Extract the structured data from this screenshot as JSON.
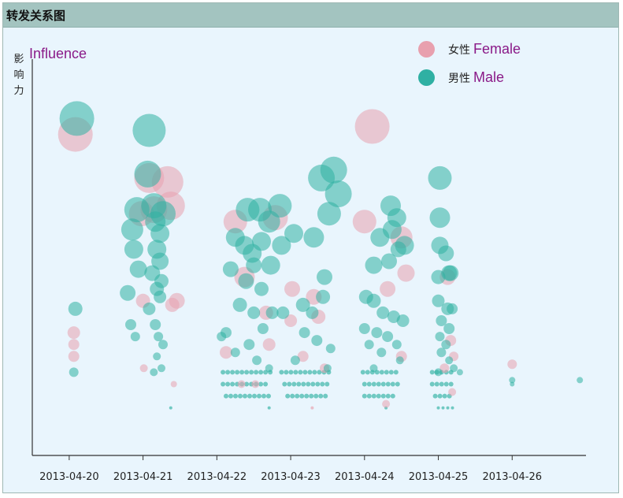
{
  "window": {
    "title": "转发关系图"
  },
  "colors": {
    "female": "#e8a0ae",
    "male": "#2fb0a3",
    "axis": "#333333",
    "background": "#e9f5fd",
    "titlebar": "#a3c4c0",
    "label_accent": "#8a1a88"
  },
  "chart_data": {
    "type": "scatter",
    "title": "转发关系图",
    "ylabel_cn": "影响力",
    "ylabel_en": "Influence",
    "xlabel": "",
    "x_ticks": [
      "2013-04-20",
      "2013-04-21",
      "2013-04-22",
      "2013-04-23",
      "2013-04-24",
      "2013-04-25",
      "2013-04-26"
    ],
    "xlim": [
      "2013-04-19 12:00",
      "2013-04-27 00:00"
    ],
    "ylim": [
      0,
      100
    ],
    "grid": false,
    "legend": {
      "position": "top-right",
      "items": [
        {
          "key": "female",
          "cn": "女性",
          "en": "Female"
        },
        {
          "key": "male",
          "cn": "男性",
          "en": "Male"
        }
      ]
    },
    "series": [
      {
        "name": "Female",
        "points": [
          [
            "2013-04-20 01:30",
            28,
            7
          ],
          [
            "2013-04-20 01:30",
            31,
            8
          ],
          [
            "2013-04-20 01:30",
            25,
            7
          ],
          [
            "2013-04-20 02:00",
            81,
            22
          ],
          [
            "2013-04-21 00:15",
            22,
            5
          ],
          [
            "2013-04-20 23:30",
            61,
            16
          ],
          [
            "2013-04-21 00:00",
            39,
            9
          ],
          [
            "2013-04-21 02:00",
            70,
            19
          ],
          [
            "2013-04-21 03:30",
            62,
            17
          ],
          [
            "2013-04-21 08:00",
            69,
            20
          ],
          [
            "2013-04-21 09:00",
            63,
            18
          ],
          [
            "2013-04-21 09:30",
            38,
            9
          ],
          [
            "2013-04-21 10:00",
            18,
            4
          ],
          [
            "2013-04-21 11:00",
            39,
            10
          ],
          [
            "2013-04-22 06:00",
            59,
            15
          ],
          [
            "2013-04-22 09:00",
            45,
            13
          ],
          [
            "2013-04-22 03:00",
            26,
            8
          ],
          [
            "2013-04-22 19:00",
            60,
            16
          ],
          [
            "2013-04-22 17:00",
            28,
            8
          ],
          [
            "2013-04-22 16:00",
            36,
            9
          ],
          [
            "2013-04-22 12:30",
            18,
            5
          ],
          [
            "2013-04-22 08:00",
            18,
            5
          ],
          [
            "2013-04-23 00:30",
            42,
            10
          ],
          [
            "2013-04-23 00:00",
            34,
            8
          ],
          [
            "2013-04-23 07:30",
            40,
            10
          ],
          [
            "2013-04-23 09:00",
            35,
            9
          ],
          [
            "2013-04-23 04:00",
            25,
            7
          ],
          [
            "2013-04-23 11:00",
            22,
            6
          ],
          [
            "2013-04-24 00:00",
            59,
            15
          ],
          [
            "2013-04-24 02:30",
            83,
            22
          ],
          [
            "2013-04-24 07:30",
            42,
            10
          ],
          [
            "2013-04-24 12:00",
            55,
            14
          ],
          [
            "2013-04-24 13:30",
            46,
            11
          ],
          [
            "2013-04-24 12:00",
            25,
            7
          ],
          [
            "2013-04-24 07:00",
            13,
            5
          ],
          [
            "2013-04-25 03:00",
            45,
            10
          ],
          [
            "2013-04-25 04:00",
            29,
            7
          ],
          [
            "2013-04-25 05:00",
            25,
            6
          ],
          [
            "2013-04-25 02:00",
            22,
            6
          ],
          [
            "2013-04-25 04:30",
            16,
            5
          ],
          [
            "2013-04-26 00:00",
            23,
            6
          ]
        ]
      },
      {
        "name": "Male",
        "points": [
          [
            "2013-04-20 02:30",
            85,
            22
          ],
          [
            "2013-04-20 02:00",
            37,
            9
          ],
          [
            "2013-04-20 01:30",
            21,
            6
          ],
          [
            "2013-04-21 02:00",
            82,
            21
          ],
          [
            "2013-04-21 01:30",
            71,
            17
          ],
          [
            "2013-04-20 22:00",
            62,
            16
          ],
          [
            "2013-04-20 20:30",
            57,
            14
          ],
          [
            "2013-04-20 21:00",
            52,
            12
          ],
          [
            "2013-04-20 22:30",
            47,
            11
          ],
          [
            "2013-04-20 19:00",
            41,
            10
          ],
          [
            "2013-04-21 03:30",
            63,
            16
          ],
          [
            "2013-04-21 06:30",
            61,
            16
          ],
          [
            "2013-04-21 04:00",
            59,
            13
          ],
          [
            "2013-04-21 05:30",
            56,
            12
          ],
          [
            "2013-04-21 04:30",
            52,
            12
          ],
          [
            "2013-04-21 05:30",
            49,
            11
          ],
          [
            "2013-04-21 03:00",
            46,
            10
          ],
          [
            "2013-04-21 06:00",
            44,
            9
          ],
          [
            "2013-04-21 04:30",
            42,
            9
          ],
          [
            "2013-04-21 02:00",
            37,
            8
          ],
          [
            "2013-04-21 05:30",
            40,
            8
          ],
          [
            "2013-04-21 04:00",
            33,
            7
          ],
          [
            "2013-04-21 05:00",
            30,
            6
          ],
          [
            "2013-04-21 06:30",
            28,
            6
          ],
          [
            "2013-04-21 04:30",
            25,
            5
          ],
          [
            "2013-04-21 06:00",
            22,
            5
          ],
          [
            "2013-04-21 03:30",
            21,
            5
          ],
          [
            "2013-04-20 20:00",
            33,
            7
          ],
          [
            "2013-04-20 21:30",
            30,
            6
          ],
          [
            "2013-04-22 03:00",
            31,
            7
          ],
          [
            "2013-04-22 04:30",
            47,
            10
          ],
          [
            "2013-04-22 06:00",
            55,
            12
          ],
          [
            "2013-04-22 10:00",
            62,
            15
          ],
          [
            "2013-04-22 14:00",
            62,
            15
          ],
          [
            "2013-04-22 20:30",
            63,
            15
          ],
          [
            "2013-04-22 17:00",
            59,
            14
          ],
          [
            "2013-04-22 09:00",
            53,
            12
          ],
          [
            "2013-04-22 11:30",
            51,
            12
          ],
          [
            "2013-04-22 14:30",
            54,
            12
          ],
          [
            "2013-04-22 17:30",
            48,
            12
          ],
          [
            "2013-04-22 21:00",
            53,
            12
          ],
          [
            "2013-04-23 01:00",
            56,
            12
          ],
          [
            "2013-04-23 10:00",
            70,
            17
          ],
          [
            "2013-04-23 14:00",
            72,
            17
          ],
          [
            "2013-04-23 15:30",
            66,
            17
          ],
          [
            "2013-04-23 12:30",
            61,
            15
          ],
          [
            "2013-04-23 07:30",
            55,
            13
          ],
          [
            "2013-04-23 11:00",
            45,
            10
          ],
          [
            "2013-04-22 12:00",
            48,
            10
          ],
          [
            "2013-04-22 09:30",
            44,
            10
          ],
          [
            "2013-04-22 14:30",
            42,
            9
          ],
          [
            "2013-04-22 07:30",
            38,
            9
          ],
          [
            "2013-04-22 12:00",
            36,
            8
          ],
          [
            "2013-04-22 18:00",
            36,
            8
          ],
          [
            "2013-04-22 21:30",
            36,
            8
          ],
          [
            "2013-04-22 15:00",
            32,
            7
          ],
          [
            "2013-04-22 10:30",
            28,
            7
          ],
          [
            "2013-04-22 06:00",
            26,
            6
          ],
          [
            "2013-04-22 13:00",
            24,
            6
          ],
          [
            "2013-04-22 17:00",
            22,
            5
          ],
          [
            "2013-04-22 01:30",
            30,
            6
          ],
          [
            "2013-04-23 04:00",
            38,
            9
          ],
          [
            "2013-04-23 07:00",
            36,
            8
          ],
          [
            "2013-04-23 10:30",
            40,
            9
          ],
          [
            "2013-04-23 04:30",
            31,
            7
          ],
          [
            "2013-04-23 08:30",
            29,
            7
          ],
          [
            "2013-04-23 13:00",
            27,
            6
          ],
          [
            "2013-04-23 01:30",
            24,
            6
          ],
          [
            "2013-04-23 12:00",
            22,
            5
          ],
          [
            "2013-04-24 00:30",
            40,
            9
          ],
          [
            "2013-04-24 03:00",
            48,
            11
          ],
          [
            "2013-04-24 05:00",
            55,
            12
          ],
          [
            "2013-04-24 08:30",
            63,
            13
          ],
          [
            "2013-04-24 09:00",
            57,
            12
          ],
          [
            "2013-04-24 10:30",
            60,
            12
          ],
          [
            "2013-04-24 13:00",
            53,
            12
          ],
          [
            "2013-04-24 11:00",
            52,
            10
          ],
          [
            "2013-04-24 08:00",
            49,
            10
          ],
          [
            "2013-04-24 03:00",
            39,
            9
          ],
          [
            "2013-04-24 06:00",
            36,
            8
          ],
          [
            "2013-04-24 09:30",
            35,
            8
          ],
          [
            "2013-04-24 12:30",
            34,
            8
          ],
          [
            "2013-04-24 00:00",
            32,
            7
          ],
          [
            "2013-04-24 04:00",
            31,
            7
          ],
          [
            "2013-04-24 07:30",
            30,
            7
          ],
          [
            "2013-04-24 10:30",
            28,
            6
          ],
          [
            "2013-04-24 01:30",
            28,
            6
          ],
          [
            "2013-04-24 05:30",
            26,
            6
          ],
          [
            "2013-04-24 11:30",
            24,
            5
          ],
          [
            "2013-04-24 03:00",
            22,
            5
          ],
          [
            "2013-04-25 00:30",
            70,
            15
          ],
          [
            "2013-04-25 00:30",
            60,
            13
          ],
          [
            "2013-04-25 00:30",
            53,
            11
          ],
          [
            "2013-04-25 02:30",
            51,
            10
          ],
          [
            "2013-04-25 00:00",
            45,
            9
          ],
          [
            "2013-04-25 03:30",
            46,
            10
          ],
          [
            "2013-04-25 04:00",
            46,
            10
          ],
          [
            "2013-04-25 00:00",
            39,
            8
          ],
          [
            "2013-04-25 03:00",
            37,
            8
          ],
          [
            "2013-04-25 04:30",
            37,
            7
          ],
          [
            "2013-04-25 01:00",
            34,
            7
          ],
          [
            "2013-04-25 03:30",
            32,
            7
          ],
          [
            "2013-04-25 00:30",
            30,
            6
          ],
          [
            "2013-04-25 02:30",
            28,
            6
          ],
          [
            "2013-04-25 01:00",
            26,
            6
          ],
          [
            "2013-04-25 03:30",
            24,
            5
          ],
          [
            "2013-04-25 05:00",
            22,
            5
          ],
          [
            "2013-04-25 00:00",
            21,
            5
          ],
          [
            "2013-04-25 07:00",
            21,
            4
          ],
          [
            "2013-04-26 00:00",
            19,
            4
          ],
          [
            "2013-04-26 00:00",
            18,
            3
          ],
          [
            "2013-04-26 22:00",
            19,
            4
          ]
        ]
      }
    ],
    "baseline_rows": [
      {
        "y": 21,
        "size": 3,
        "ranges": [
          [
            "2013-04-22 02:00",
            "2013-04-22 18:00"
          ],
          [
            "2013-04-22 21:00",
            "2013-04-23 13:00"
          ],
          [
            "2013-04-23 23:30",
            "2013-04-24 11:00"
          ],
          [
            "2013-04-24 22:00",
            "2013-04-25 05:00"
          ]
        ]
      },
      {
        "y": 18,
        "size": 3,
        "ranges": [
          [
            "2013-04-22 02:00",
            "2013-04-22 16:00"
          ],
          [
            "2013-04-22 22:00",
            "2013-04-23 12:00"
          ],
          [
            "2013-04-24 00:00",
            "2013-04-24 11:00"
          ],
          [
            "2013-04-24 22:00",
            "2013-04-25 05:00"
          ]
        ]
      },
      {
        "y": 15,
        "size": 3,
        "ranges": [
          [
            "2013-04-22 03:00",
            "2013-04-22 17:00"
          ],
          [
            "2013-04-22 23:00",
            "2013-04-23 12:00"
          ],
          [
            "2013-04-24 00:00",
            "2013-04-24 10:00"
          ],
          [
            "2013-04-24 23:00",
            "2013-04-25 05:00"
          ]
        ]
      },
      {
        "y": 12,
        "size": 2,
        "ranges": [
          [
            "2013-04-21 09:00",
            "2013-04-21 10:00"
          ],
          [
            "2013-04-22 17:00",
            "2013-04-22 18:00"
          ],
          [
            "2013-04-23 07:00",
            "2013-04-23 08:00"
          ],
          [
            "2013-04-24 07:00",
            "2013-04-24 08:00"
          ],
          [
            "2013-04-25 00:00",
            "2013-04-25 06:00"
          ]
        ]
      }
    ]
  }
}
